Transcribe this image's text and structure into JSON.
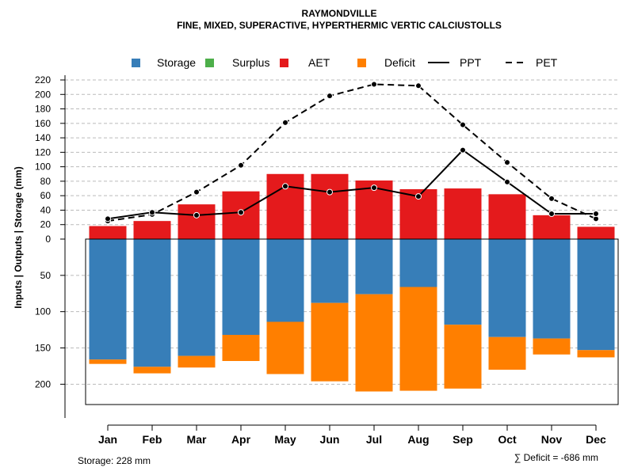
{
  "chart_data": {
    "type": "bar",
    "title": "RAYMONDVILLE",
    "subtitle": "FINE, MIXED, SUPERACTIVE, HYPERTHERMIC VERTIC CALCIUSTOLLS",
    "ylabel": "Inputs | Outputs | Storage     (mm)",
    "categories": [
      "Jan",
      "Feb",
      "Mar",
      "Apr",
      "May",
      "Jun",
      "Jul",
      "Aug",
      "Sep",
      "Oct",
      "Nov",
      "Dec"
    ],
    "upper_ticks": [
      0,
      20,
      40,
      60,
      80,
      100,
      120,
      140,
      160,
      180,
      200,
      220
    ],
    "lower_ticks": [
      50,
      100,
      150,
      200
    ],
    "upper_ylim": [
      0,
      220
    ],
    "lower_ylim": [
      0,
      228
    ],
    "colors": {
      "Storage": "#377EB8",
      "Surplus": "#4DAF4A",
      "AET": "#E41A1C",
      "Deficit": "#FF7F00",
      "lines": "#000000",
      "grid": "#BBBBBB"
    },
    "legend": [
      {
        "name": "Storage",
        "kind": "box",
        "color": "#377EB8"
      },
      {
        "name": "Surplus",
        "kind": "box",
        "color": "#4DAF4A"
      },
      {
        "name": "AET",
        "kind": "box",
        "color": "#E41A1C"
      },
      {
        "name": "Deficit",
        "kind": "box",
        "color": "#FF7F00"
      },
      {
        "name": "PPT",
        "kind": "solid"
      },
      {
        "name": "PET",
        "kind": "dashed"
      }
    ],
    "series": [
      {
        "name": "AET",
        "kind": "bar-up",
        "values": [
          18,
          25,
          48,
          66,
          90,
          90,
          81,
          69,
          70,
          62,
          33,
          17
        ]
      },
      {
        "name": "Storage",
        "kind": "bar-down",
        "values": [
          166,
          176,
          161,
          132,
          114,
          88,
          76,
          66,
          118,
          135,
          137,
          153
        ]
      },
      {
        "name": "Deficit",
        "kind": "bar-down-stacked",
        "values": [
          6,
          9,
          16,
          36,
          72,
          108,
          134,
          143,
          88,
          45,
          22,
          10
        ]
      },
      {
        "name": "PPT",
        "kind": "line",
        "values": [
          28,
          37,
          33,
          37,
          73,
          65,
          71,
          59,
          123,
          79,
          35,
          35
        ]
      },
      {
        "name": "PET",
        "kind": "line-dashed",
        "values": [
          25,
          34,
          65,
          102,
          161,
          198,
          214,
          212,
          158,
          106,
          56,
          28
        ]
      }
    ],
    "storage_label": "Storage: 228 mm",
    "deficit_label": "∑ Deficit = -686 mm"
  }
}
